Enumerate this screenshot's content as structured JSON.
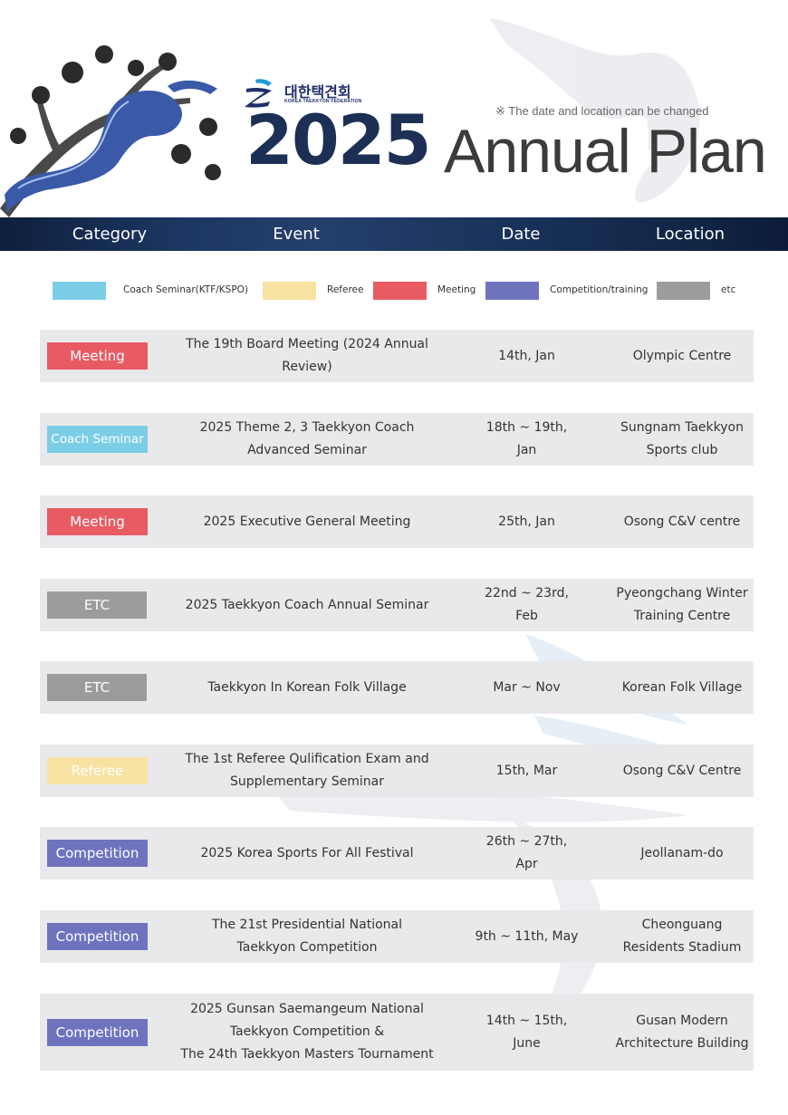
{
  "logo": {
    "korean_name": "대한택견회",
    "english_name": "KOREA TAEKKYON FEDERATION"
  },
  "header": {
    "year": "2025",
    "title": "Annual Plan",
    "notice": "※ The date and location can be changed"
  },
  "columns": {
    "category": "Category",
    "event": "Event",
    "date": "Date",
    "location": "Location"
  },
  "legend": [
    {
      "label": "Coach Seminar(KTF/KSPO)",
      "color": "#7ccde6"
    },
    {
      "label": "Referee",
      "color": "#f8e2a2"
    },
    {
      "label": "Meeting",
      "color": "#e85b63"
    },
    {
      "label": "Competition/training",
      "color": "#6f73be"
    },
    {
      "label": "etc",
      "color": "#9c9c9c"
    }
  ],
  "rows": [
    {
      "category": "Meeting",
      "category_color": "#e85b63",
      "event": "The 19th Board Meeting (2024 Annual Review)",
      "date": "14th, Jan",
      "location": "Olympic Centre"
    },
    {
      "category": "Coach Seminar",
      "category_color": "#7ccde6",
      "event": "2025 Theme 2, 3 Taekkyon Coach\nAdvanced Seminar",
      "date": "18th ~ 19th, Jan",
      "location": "Sungnam Taekkyon\nSports club"
    },
    {
      "category": "Meeting",
      "category_color": "#e85b63",
      "event": "2025 Executive General Meeting",
      "date": "25th, Jan",
      "location": "Osong C&V centre"
    },
    {
      "category": "ETC",
      "category_color": "#9c9c9c",
      "event": "2025 Taekkyon Coach Annual Seminar",
      "date": "22nd ~ 23rd, Feb",
      "location": "Pyeongchang Winter\nTraining Centre"
    },
    {
      "category": "ETC",
      "category_color": "#9c9c9c",
      "event": "Taekkyon In Korean Folk Village",
      "date": "Mar ~ Nov",
      "location": "Korean Folk Village"
    },
    {
      "category": "Referee",
      "category_color": "#f8e2a2",
      "event": "The 1st Referee Qulification Exam and\nSupplementary Seminar",
      "date": "15th, Mar",
      "location": "Osong C&V Centre"
    },
    {
      "category": "Competition",
      "category_color": "#6f73be",
      "event": "2025 Korea Sports For All Festival",
      "date": "26th ~ 27th, Apr",
      "location": "Jeollanam-do"
    },
    {
      "category": "Competition",
      "category_color": "#6f73be",
      "event": "The 21st Presidential National\nTaekkyon Competition",
      "date": "9th ~ 11th, May",
      "location": "Cheonguang\nResidents Stadium"
    },
    {
      "category": "Competition",
      "category_color": "#6f73be",
      "event": "2025 Gunsan Saemangeum National\nTaekkyon Competition &\nThe 24th Taekkyon Masters Tournament",
      "date": "14th ~ 15th, June",
      "location": "Gusan Modern\nArchitecture Building"
    }
  ]
}
